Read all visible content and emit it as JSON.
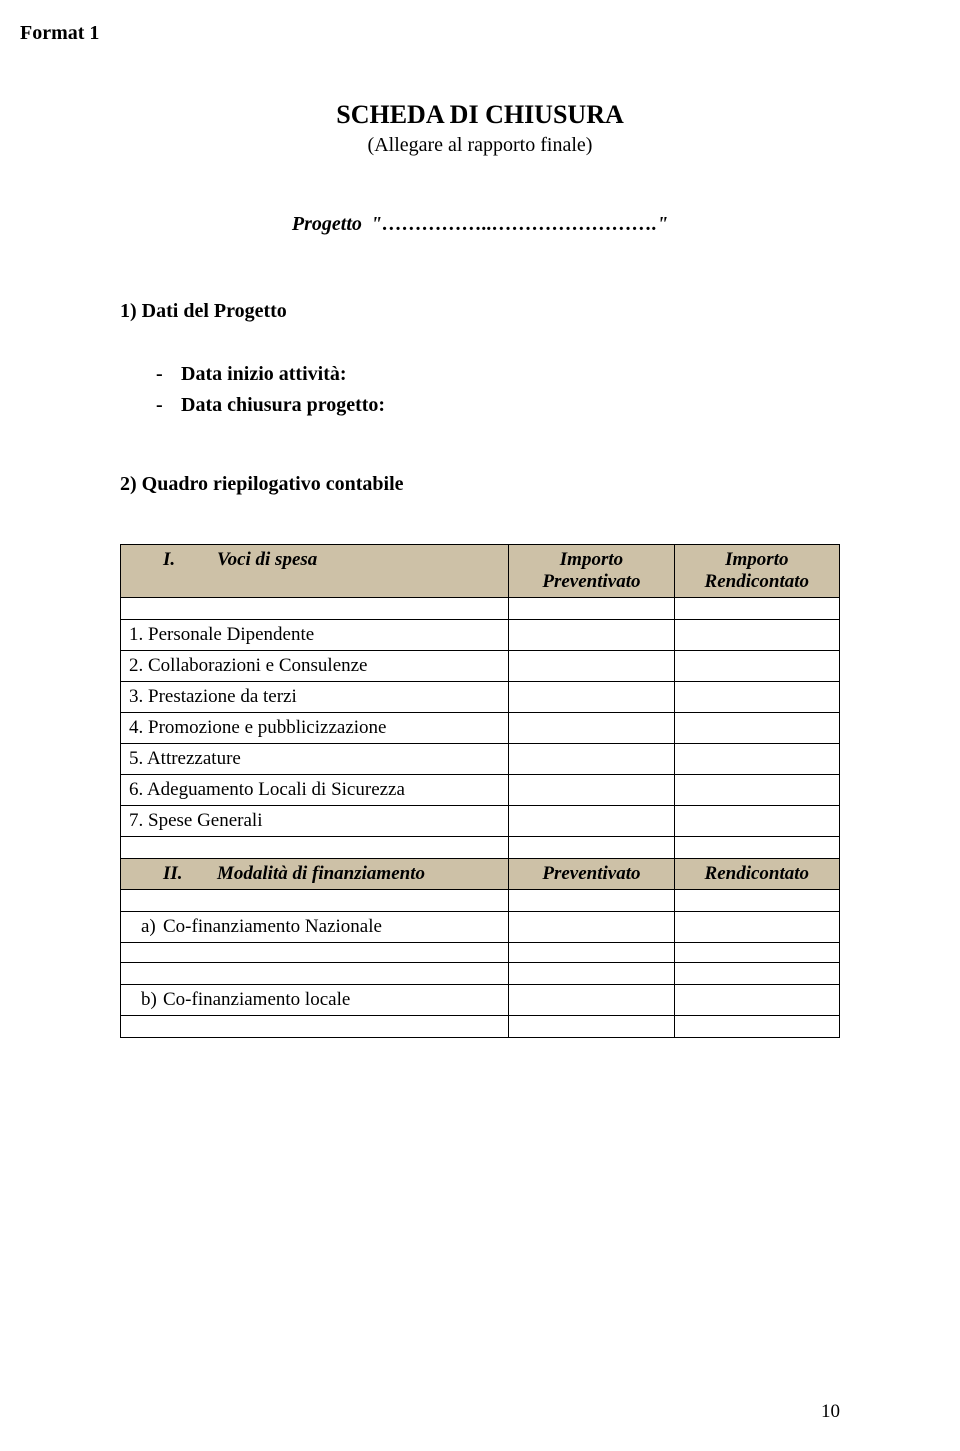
{
  "format_label": "Format 1",
  "title": "SCHEDA DI CHIUSURA",
  "subtitle": "(Allegare al rapporto finale)",
  "progetto_line": "Progetto \"……………..…………………….\"",
  "section1": {
    "heading": "1) Dati del Progetto",
    "fields": [
      "Data inizio attività:",
      "Data chiusura progetto:"
    ]
  },
  "section2": {
    "heading": "2) Quadro riepilogativo contabile"
  },
  "table1": {
    "header_roman": "I.",
    "header_label": "Voci di spesa",
    "col2": "Importo Preventivato",
    "col3": "Importo Rendicontato",
    "rows": [
      "1.   Personale Dipendente",
      "2.   Collaborazioni e Consulenze",
      "3.   Prestazione da terzi",
      "4.   Promozione e pubblicizzazione",
      "5.   Attrezzature",
      "6.   Adeguamento Locali di Sicurezza",
      "7.   Spese Generali"
    ]
  },
  "table2": {
    "header_roman": "II.",
    "header_label": "Modalità di finanziamento",
    "col2": "Preventivato",
    "col3": "Rendicontato",
    "row_a_letter": "a)",
    "row_a_text": "Co-finanziamento Nazionale",
    "row_b_letter": "b)",
    "row_b_text": "Co-finanziamento locale"
  },
  "page_number": "10",
  "colors": {
    "header_bg": "#cdc1a7",
    "border": "#000000",
    "text": "#000000",
    "background": "#ffffff"
  }
}
